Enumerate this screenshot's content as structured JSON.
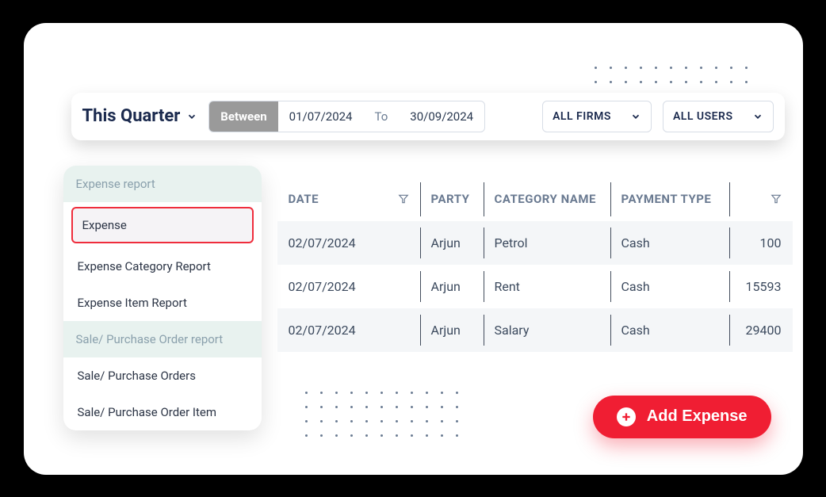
{
  "filter": {
    "period_label": "This Quarter",
    "between_label": "Between",
    "date_from": "01/07/2024",
    "to_label": "To",
    "date_to": "30/09/2024",
    "firm_select": "ALL FIRMS",
    "user_select": "ALL USERS"
  },
  "sidebar": {
    "group1_header": "Expense report",
    "group1_items": [
      "Expense",
      "Expense Category Report",
      "Expense Item Report"
    ],
    "group2_header": "Sale/ Purchase Order report",
    "group2_items": [
      "Sale/ Purchase Orders",
      "Sale/ Purchase Order Item"
    ],
    "selected_index": 0
  },
  "table": {
    "columns": [
      "DATE",
      "PARTY",
      "CATEGORY NAME",
      "PAYMENT TYPE",
      ""
    ],
    "rows": [
      [
        "02/07/2024",
        "Arjun",
        "Petrol",
        "Cash",
        "100"
      ],
      [
        "02/07/2024",
        "Arjun",
        "Rent",
        "Cash",
        "15593"
      ],
      [
        "02/07/2024",
        "Arjun",
        "Salary",
        "Cash",
        "29400"
      ]
    ]
  },
  "add_button": {
    "label": "Add Expense"
  },
  "colors": {
    "brand_navy": "#1b2a4e",
    "red": "#f01e33",
    "red_border": "#ef2d3c",
    "grey_btn": "#9a9a9a",
    "sidebar_header_bg": "#e8f2ef",
    "divider": "#2f3a4a",
    "row_alt": "#f4f6f8"
  }
}
